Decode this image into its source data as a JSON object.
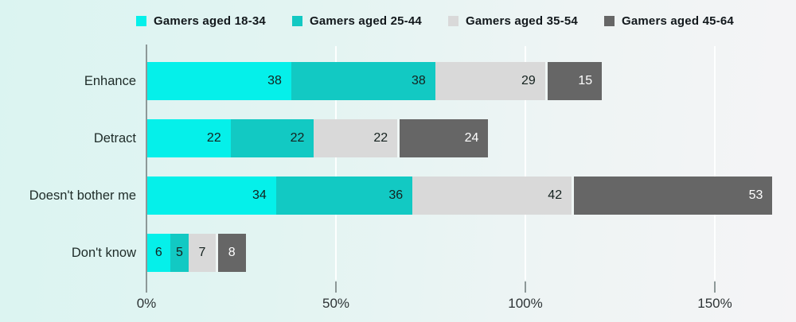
{
  "chart_data": {
    "type": "bar",
    "orientation": "horizontal-stacked",
    "title": "",
    "xlabel": "",
    "ylabel": "",
    "categories": [
      "Enhance",
      "Detract",
      "Doesn't bother me",
      "Don't know"
    ],
    "series": [
      {
        "name": "Gamers aged 18-34",
        "color": "#05f0ea",
        "label_color": "#14211e",
        "values": [
          38,
          22,
          34,
          6
        ]
      },
      {
        "name": "Gamers aged 25-44",
        "color": "#12c9c3",
        "label_color": "#14211e",
        "values": [
          38,
          22,
          36,
          5
        ]
      },
      {
        "name": "Gamers aged 35-54",
        "color": "#d9d9d9",
        "label_color": "#14211e",
        "values": [
          29,
          22,
          42,
          7
        ]
      },
      {
        "name": "Gamers aged 45-64",
        "color": "#666666",
        "label_color": "#ffffff",
        "values": [
          15,
          24,
          53,
          8
        ]
      }
    ],
    "xtick_labels": [
      "0%",
      "50%",
      "100%",
      "150%"
    ],
    "xtick_values": [
      0,
      50,
      100,
      150
    ],
    "xlim": [
      0,
      171
    ],
    "grid": "vertical",
    "legend_position": "top"
  }
}
